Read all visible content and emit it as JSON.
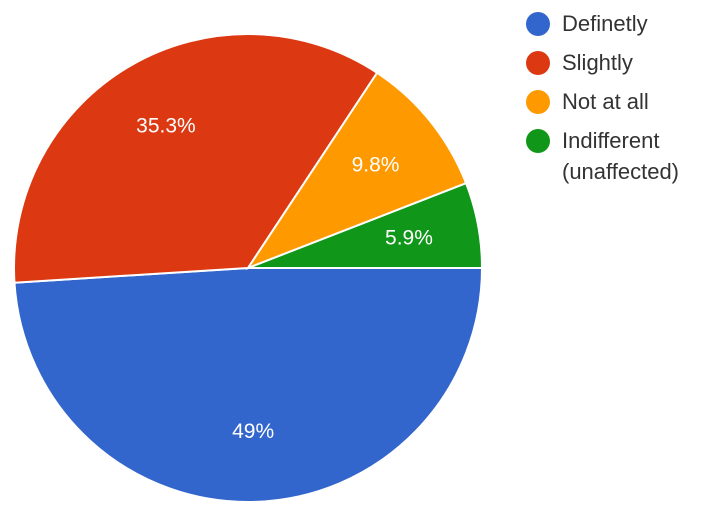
{
  "chart_data": {
    "type": "pie",
    "legend_position": "right",
    "slices": [
      {
        "label": "Definetly",
        "value": 49,
        "display": "49%",
        "color": "#3366cc"
      },
      {
        "label": "Slightly",
        "value": 35.3,
        "display": "35.3%",
        "color": "#dc3912"
      },
      {
        "label": "Not at all",
        "value": 9.8,
        "display": "9.8%",
        "color": "#ff9900"
      },
      {
        "label": "Indifferent (unaffected)",
        "value": 5.9,
        "display": "5.9%",
        "color": "#109618"
      }
    ],
    "legend": [
      {
        "lines": [
          "Definetly"
        ],
        "color": "#3366cc"
      },
      {
        "lines": [
          "Slightly"
        ],
        "color": "#dc3912"
      },
      {
        "lines": [
          "Not at all"
        ],
        "color": "#ff9900"
      },
      {
        "lines": [
          "Indifferent",
          "(unaffected)"
        ],
        "color": "#109618"
      }
    ]
  }
}
